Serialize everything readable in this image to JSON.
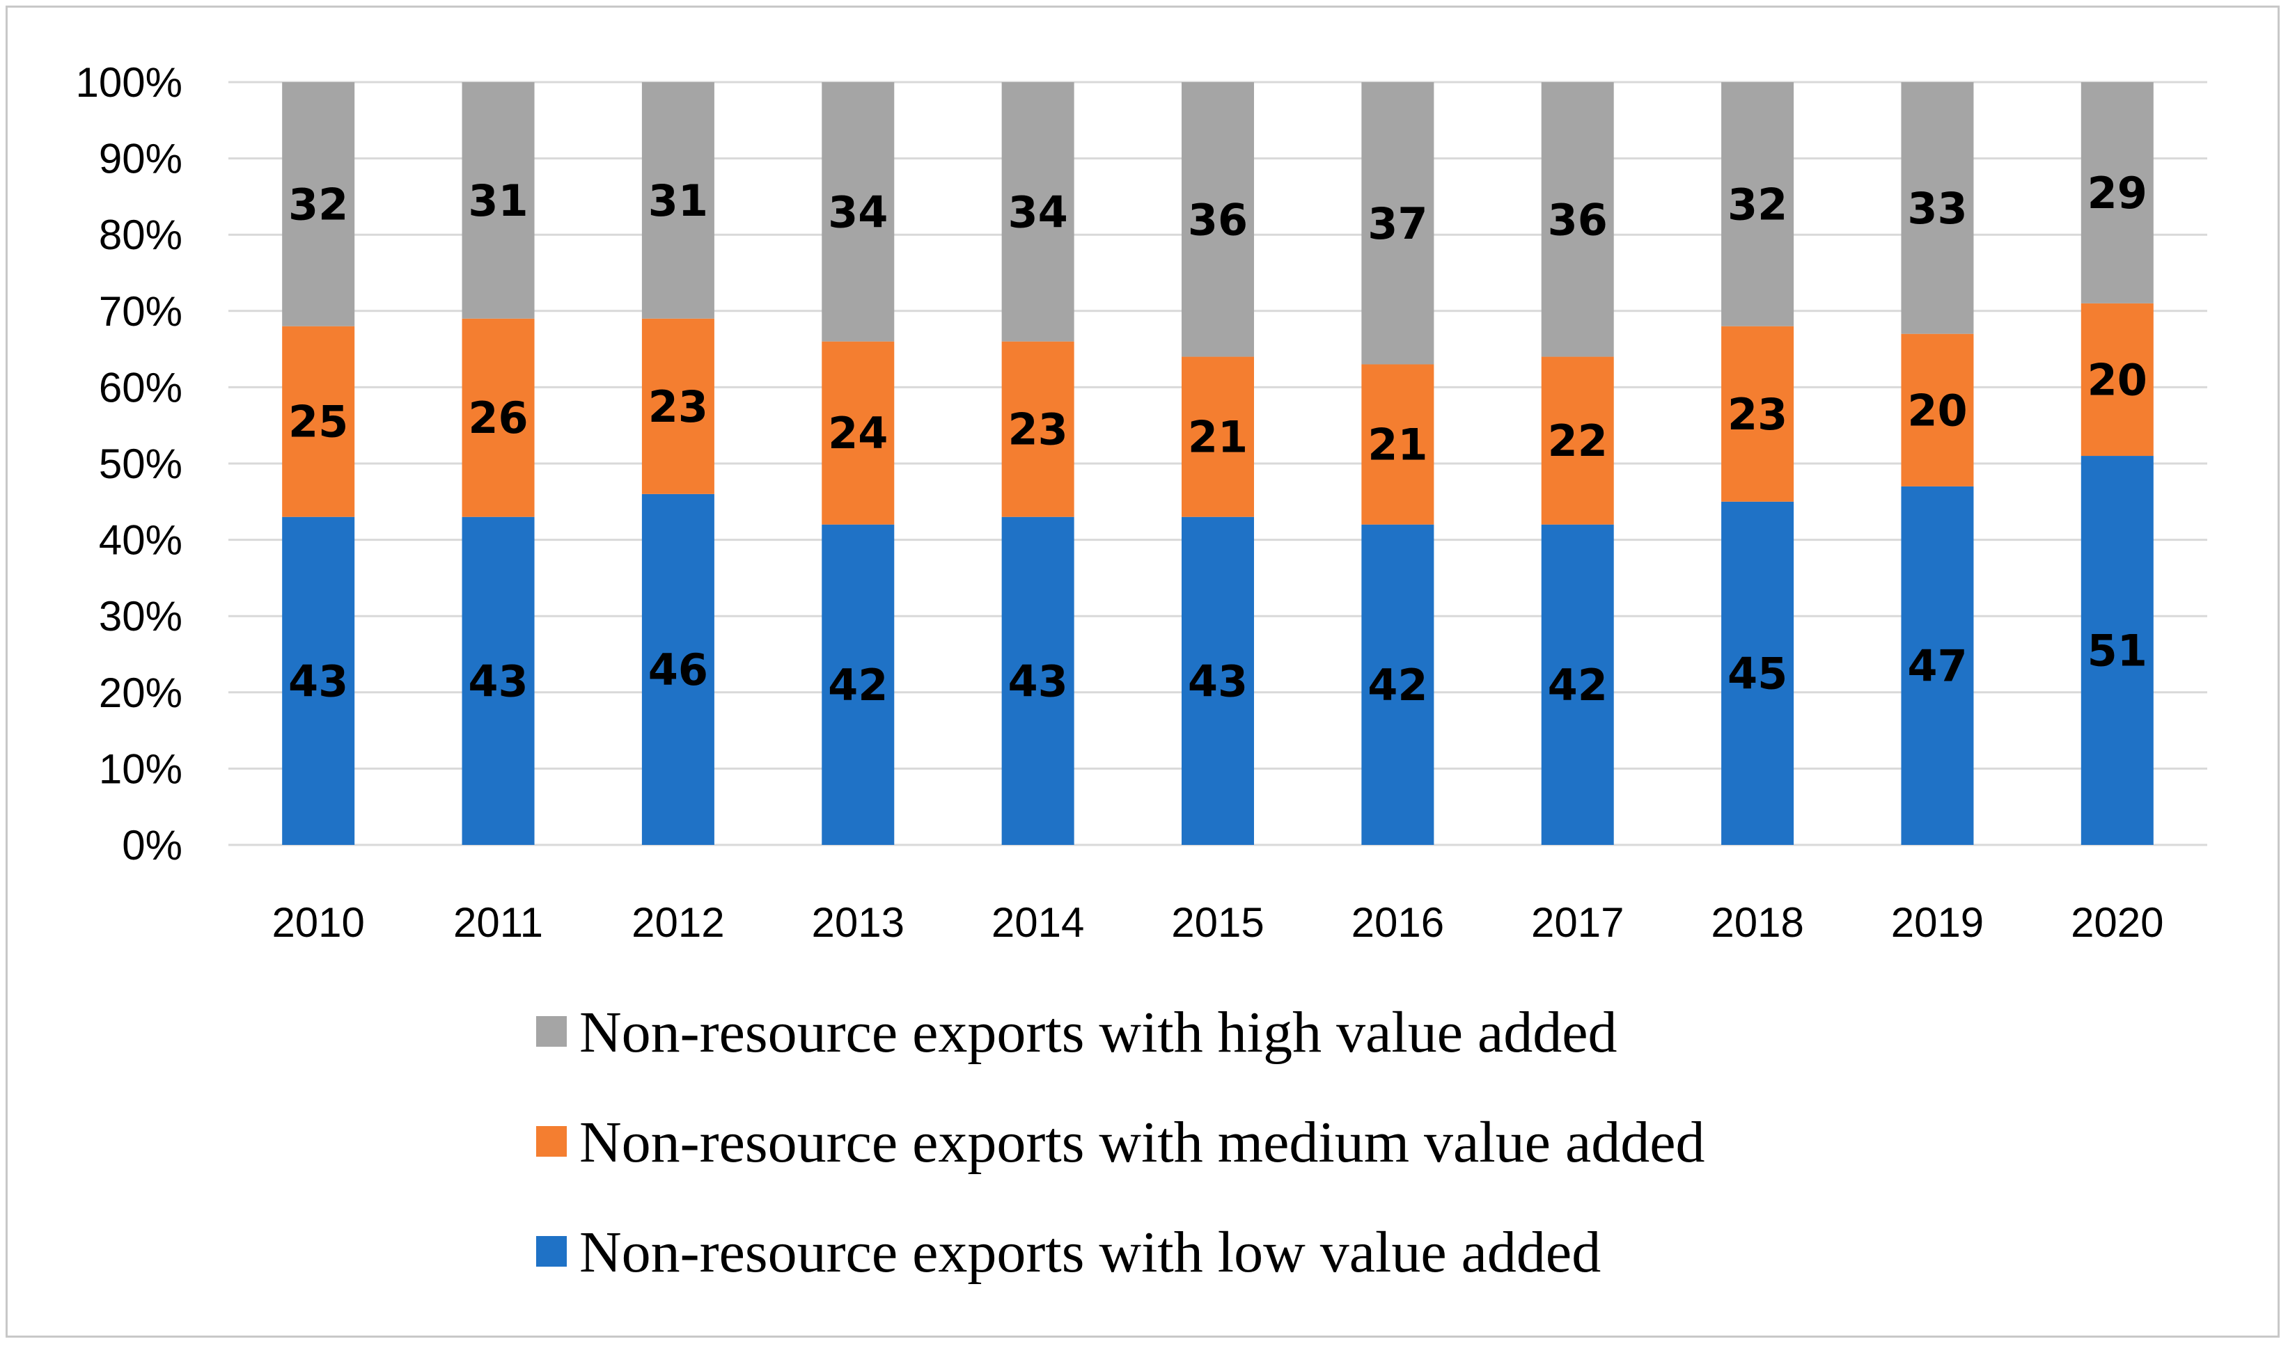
{
  "chart_data": {
    "type": "bar",
    "stacked": true,
    "percent_stacked": true,
    "title": "",
    "xlabel": "",
    "ylabel": "",
    "ylim": [
      0,
      100
    ],
    "y_ticks": [
      "0%",
      "10%",
      "20%",
      "30%",
      "40%",
      "50%",
      "60%",
      "70%",
      "80%",
      "90%",
      "100%"
    ],
    "grid": true,
    "legend_position": "bottom",
    "categories": [
      "2010",
      "2011",
      "2012",
      "2013",
      "2014",
      "2015",
      "2016",
      "2017",
      "2018",
      "2019",
      "2020"
    ],
    "series": [
      {
        "name": "Non-resource exports with low value added",
        "color": "#1f72c6",
        "values": [
          43,
          43,
          46,
          42,
          43,
          43,
          42,
          42,
          45,
          47,
          51
        ]
      },
      {
        "name": "Non-resource exports with medium value added",
        "color": "#f47e30",
        "values": [
          25,
          26,
          23,
          24,
          23,
          21,
          21,
          22,
          23,
          20,
          20
        ]
      },
      {
        "name": "Non-resource exports with high value added",
        "color": "#a5a5a5",
        "values": [
          32,
          31,
          31,
          34,
          34,
          36,
          37,
          36,
          32,
          33,
          29
        ]
      }
    ],
    "legend_order": [
      2,
      1,
      0
    ]
  }
}
